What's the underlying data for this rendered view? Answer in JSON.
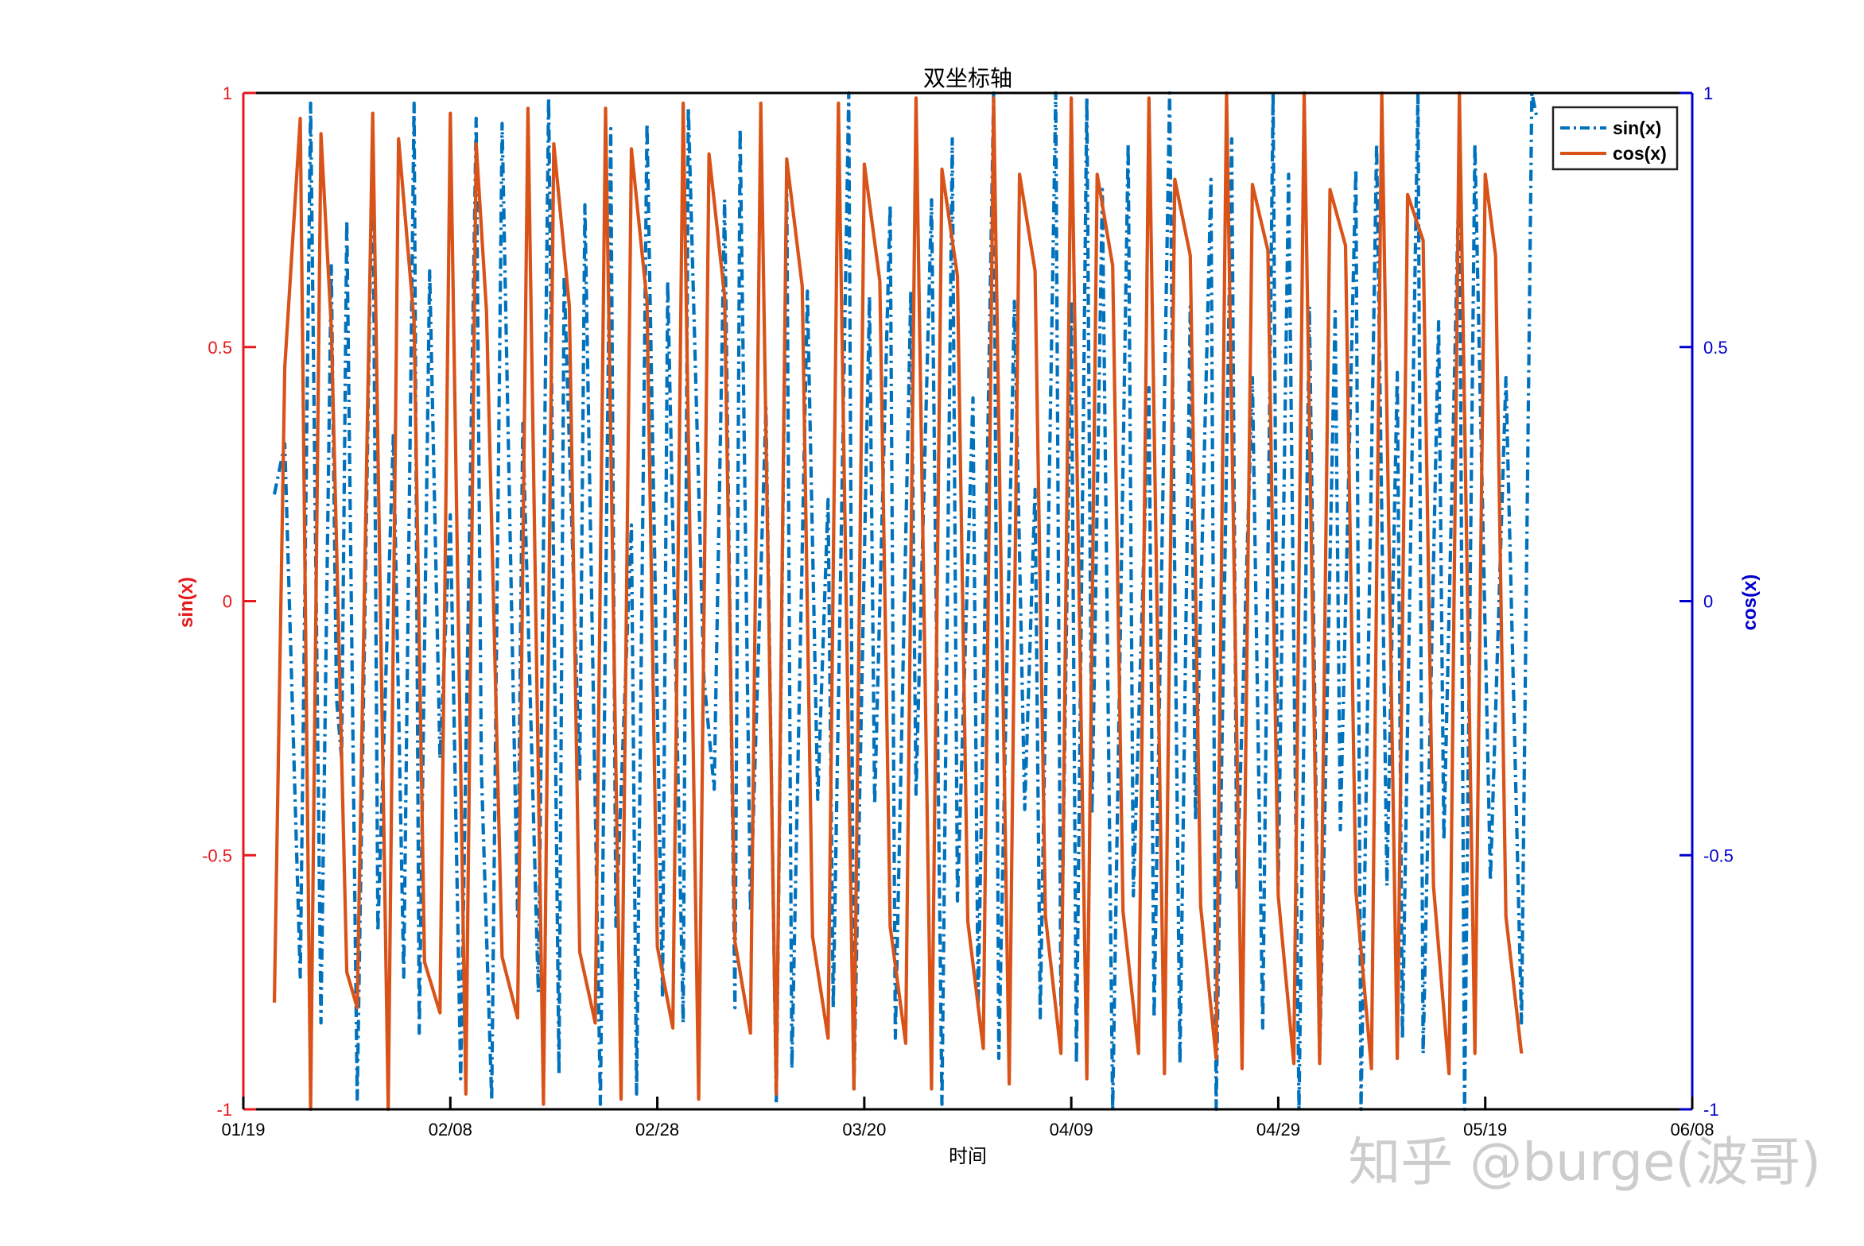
{
  "chart_data": {
    "type": "line",
    "title": "双坐标轴",
    "xlabel": "时间",
    "ylabel_left": "sin(x)",
    "ylabel_right": "cos(x)",
    "left_axis_color": "#e41a1c",
    "right_axis_color": "#0000cc",
    "ylim_left": [
      -1,
      1
    ],
    "ylim_right": [
      -1,
      1
    ],
    "yticks_left": [
      "-1",
      "-0.5",
      "0",
      "0.5",
      "1"
    ],
    "yticks_left_values": [
      -1,
      -0.5,
      0,
      0.5,
      1
    ],
    "yticks_right": [
      "-1",
      "-0.5",
      "0",
      "0.5",
      "1"
    ],
    "yticks_right_values": [
      -1,
      -0.5,
      0,
      0.5,
      1
    ],
    "xlim": [
      "01/19",
      "06/08"
    ],
    "xlim_days": [
      0,
      140
    ],
    "xticks": [
      "01/19",
      "02/08",
      "02/28",
      "03/20",
      "04/09",
      "04/29",
      "05/19",
      "06/08"
    ],
    "xticks_days": [
      0,
      20,
      40,
      60,
      80,
      100,
      120,
      140
    ],
    "legend_position": "top-right",
    "grid": false,
    "series": [
      {
        "name": "sin(x)",
        "color": "#0072bd",
        "style": "dash-dot",
        "x_days": [
          3.0,
          4.0,
          5.5,
          6.5,
          7.5,
          8.5,
          9.0,
          9.5,
          10.0,
          11.0,
          12.5,
          13.0,
          14.5,
          15.5,
          16.5,
          17.0,
          18.0,
          19.0,
          20.0,
          21.0,
          22.5,
          23.0,
          24.0,
          25.0,
          26.5,
          27.0,
          28.5,
          29.5,
          30.5,
          31.0,
          32.5,
          33.0,
          34.5,
          35.5,
          36.0,
          37.5,
          38.0,
          39.0,
          40.5,
          41.0,
          42.5,
          43.0,
          44.5,
          45.5,
          46.5,
          47.5,
          48.0,
          49.0,
          50.5,
          51.5,
          52.5,
          53.0,
          54.5,
          55.5,
          56.5,
          57.0,
          58.5,
          59.0,
          60.5,
          61.0,
          62.5,
          63.0,
          64.5,
          65.0,
          66.5,
          67.5,
          68.5,
          69.0,
          70.5,
          71.0,
          72.5,
          73.0,
          74.5,
          75.5,
          76.5,
          77.0,
          78.5,
          79.0,
          80.0,
          80.5,
          81.5,
          82.0,
          83.0,
          84.0,
          85.5,
          86.0,
          87.5,
          88.0,
          89.5,
          90.5,
          91.5,
          92.0,
          93.5,
          94.0,
          95.5,
          96.0,
          97.5,
          98.5,
          99.5,
          100.0,
          101.0,
          102.0,
          103.0,
          104.0,
          105.5,
          106.0,
          107.5,
          108.0,
          109.5,
          110.5,
          111.5,
          112.0,
          113.5,
          114.0,
          115.5,
          116.0,
          117.5,
          118.0,
          119.0,
          120.5,
          122.0,
          123.5,
          124.5,
          125.0
        ],
        "values": [
          0.21,
          0.31,
          -0.74,
          0.98,
          -0.83,
          0.66,
          -0.19,
          -0.31,
          0.75,
          -0.98,
          0.95,
          -0.65,
          0.33,
          -0.74,
          0.98,
          -0.85,
          0.65,
          -0.31,
          0.17,
          -0.94,
          0.95,
          -0.33,
          -0.98,
          0.94,
          -0.62,
          0.35,
          -0.77,
          0.99,
          -0.93,
          0.64,
          -0.35,
          0.78,
          -0.99,
          0.93,
          -0.64,
          0.15,
          -0.97,
          0.94,
          -0.78,
          0.63,
          -0.83,
          0.97,
          -0.15,
          -0.37,
          0.79,
          -0.8,
          0.93,
          -0.61,
          0.38,
          -0.99,
          0.83,
          -0.92,
          0.61,
          -0.39,
          0.2,
          -0.8,
          1.0,
          -0.96,
          0.6,
          -0.4,
          0.78,
          -0.86,
          0.61,
          -0.38,
          0.79,
          -0.99,
          0.91,
          -0.59,
          0.4,
          -0.8,
          1.0,
          -0.9,
          0.59,
          -0.41,
          0.22,
          -0.82,
          1.0,
          -0.8,
          0.59,
          -0.91,
          0.99,
          -0.42,
          0.81,
          -1.0,
          0.9,
          -0.58,
          0.42,
          -0.82,
          1.0,
          -0.91,
          0.58,
          -0.43,
          0.83,
          -1.0,
          0.91,
          -0.57,
          0.44,
          -0.84,
          1.0,
          -0.56,
          0.84,
          -1.0,
          0.58,
          -0.9,
          0.57,
          -0.45,
          0.85,
          -1.0,
          0.9,
          -0.56,
          0.45,
          -0.86,
          1.0,
          -0.89,
          0.55,
          -0.47,
          0.87,
          -1.0,
          0.9,
          -0.55,
          0.44,
          -0.83,
          1.0,
          0.95
        ]
      },
      {
        "name": "cos(x)",
        "color": "#d95319",
        "style": "solid",
        "x_days": [
          3.0,
          4.0,
          5.5,
          6.5,
          7.5,
          8.5,
          10.0,
          11.0,
          12.5,
          14.0,
          15.0,
          16.5,
          17.5,
          19.0,
          20.0,
          21.5,
          22.5,
          23.5,
          25.0,
          26.5,
          27.5,
          29.0,
          30.0,
          31.5,
          32.5,
          34.0,
          35.0,
          36.5,
          37.5,
          39.0,
          40.0,
          41.5,
          42.5,
          44.0,
          45.0,
          46.5,
          47.5,
          49.0,
          50.0,
          51.5,
          52.5,
          54.0,
          55.0,
          56.5,
          57.5,
          59.0,
          60.0,
          61.5,
          62.5,
          64.0,
          65.0,
          66.5,
          67.5,
          69.0,
          70.0,
          71.5,
          72.5,
          74.0,
          75.0,
          76.5,
          77.5,
          79.0,
          80.0,
          81.5,
          82.5,
          84.0,
          85.0,
          86.5,
          87.5,
          89.0,
          90.0,
          91.5,
          92.5,
          94.0,
          95.0,
          96.5,
          97.5,
          99.0,
          100.0,
          101.5,
          102.5,
          104.0,
          105.0,
          106.5,
          107.5,
          109.0,
          110.0,
          111.5,
          112.5,
          114.0,
          115.0,
          116.5,
          117.5,
          119.0,
          120.0,
          121.0,
          122.0,
          123.5
        ],
        "values": [
          -0.79,
          0.46,
          0.95,
          -1.0,
          0.92,
          0.54,
          -0.73,
          -0.8,
          0.96,
          -1.0,
          0.91,
          0.55,
          -0.71,
          -0.81,
          0.96,
          -0.97,
          0.9,
          0.57,
          -0.7,
          -0.82,
          0.97,
          -0.99,
          0.9,
          0.58,
          -0.69,
          -0.83,
          0.97,
          -0.98,
          0.89,
          0.59,
          -0.68,
          -0.84,
          0.98,
          -0.98,
          0.88,
          0.6,
          -0.67,
          -0.85,
          0.98,
          -0.97,
          0.87,
          0.62,
          -0.66,
          -0.86,
          0.98,
          -0.96,
          0.86,
          0.63,
          -0.64,
          -0.87,
          0.99,
          -0.96,
          0.85,
          0.64,
          -0.63,
          -0.88,
          0.99,
          -0.95,
          0.84,
          0.65,
          -0.62,
          -0.89,
          0.99,
          -0.94,
          0.84,
          0.66,
          -0.61,
          -0.89,
          0.99,
          -0.93,
          0.83,
          0.68,
          -0.6,
          -0.9,
          1.0,
          -0.92,
          0.82,
          0.69,
          -0.58,
          -0.91,
          1.0,
          -0.91,
          0.81,
          0.7,
          -0.57,
          -0.92,
          1.0,
          -0.9,
          0.8,
          0.71,
          -0.56,
          -0.93,
          1.0,
          -0.89,
          0.84,
          0.68,
          -0.62,
          -0.89
        ]
      }
    ]
  },
  "watermark": "知乎 @burge(波哥)"
}
